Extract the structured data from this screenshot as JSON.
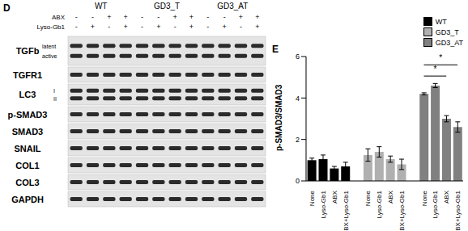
{
  "panel_d": {
    "label": "D",
    "groups": [
      "WT",
      "GD3_T",
      "GD3_AT"
    ],
    "conditions": [
      {
        "label": "ABX",
        "signs": [
          "-",
          "-",
          "+",
          "+",
          "-",
          "-",
          "+",
          "+",
          "-",
          "-",
          "+",
          "+"
        ]
      },
      {
        "label": "Lyso-Gb1",
        "signs": [
          "-",
          "+",
          "-",
          "+",
          "-",
          "+",
          "-",
          "+",
          "-",
          "+",
          "-",
          "+"
        ]
      }
    ],
    "rows": [
      {
        "label": "TGFb",
        "sublabels": [
          "latent",
          "active"
        ]
      },
      {
        "label": "TGFR1"
      },
      {
        "label": "LC3",
        "sublabels": [
          "I",
          "II"
        ]
      },
      {
        "label": "p-SMAD3"
      },
      {
        "label": "SMAD3"
      },
      {
        "label": "SNAIL"
      },
      {
        "label": "COL1"
      },
      {
        "label": "COL3"
      },
      {
        "label": "GAPDH"
      }
    ]
  },
  "chart_data": {
    "label": "E",
    "type": "bar",
    "ylabel": "p-SMAD3/SMAD3",
    "categories": [
      "None",
      "Lyso-Gb1",
      "ABX",
      "ABX+Lyso-Gb1",
      null,
      "None",
      "Lyso-Gb1",
      "ABX",
      "ABX+Lyso-Gb1",
      null,
      "None",
      "Lyso-Gb1",
      "ABX",
      "ABX+Lyso-Gb1"
    ],
    "series": [
      {
        "name": "WT",
        "color": "#000000",
        "values": [
          1.0,
          1.05,
          0.6,
          0.7,
          null,
          null,
          null,
          null,
          null,
          null,
          null,
          null,
          null,
          null
        ],
        "error": [
          0.1,
          0.2,
          0.1,
          0.2,
          null,
          null,
          null,
          null,
          null,
          null,
          null,
          null,
          null,
          null
        ]
      },
      {
        "name": "GD3_T",
        "color": "#b0b0b0",
        "values": [
          null,
          null,
          null,
          null,
          null,
          1.25,
          1.4,
          1.05,
          0.8,
          null,
          null,
          null,
          null,
          null
        ],
        "error": [
          null,
          null,
          null,
          null,
          null,
          0.3,
          0.25,
          0.15,
          0.25,
          null,
          null,
          null,
          null,
          null
        ]
      },
      {
        "name": "GD3_AT",
        "color": "#808080",
        "values": [
          null,
          null,
          null,
          null,
          null,
          null,
          null,
          null,
          null,
          null,
          4.2,
          4.6,
          3.0,
          2.6
        ],
        "error": [
          null,
          null,
          null,
          null,
          null,
          null,
          null,
          null,
          null,
          null,
          0.05,
          0.1,
          0.15,
          0.25
        ]
      }
    ],
    "ylim": [
      0,
      6
    ],
    "yticks": [
      0,
      2,
      4,
      6
    ],
    "legend": "upper right",
    "annotations": [
      {
        "text": "*",
        "group": "GD3_AT",
        "from": "None",
        "to": "ABX"
      },
      {
        "text": "*",
        "group": "GD3_AT",
        "from": "None",
        "to": "ABX+Lyso-Gb1"
      }
    ]
  }
}
